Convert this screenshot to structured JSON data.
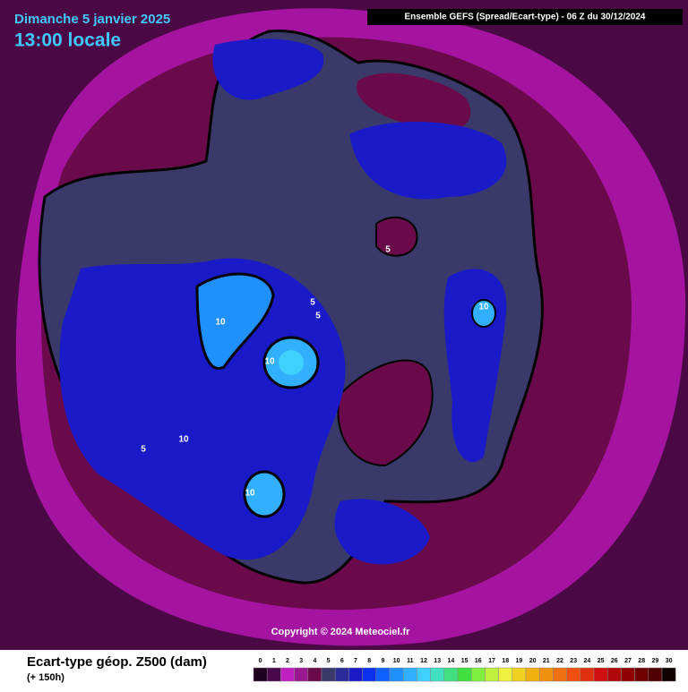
{
  "header": {
    "date": "Dimanche 5 janvier 2025",
    "time": "13:00 locale",
    "run": "Ensemble GEFS  (Spread/Ecart-type) - 06 Z du 30/12/2024"
  },
  "contour_labels": [
    "5",
    "5",
    "5",
    "5",
    "10",
    "10",
    "10",
    "10",
    "10",
    "10"
  ],
  "copyright": "Copyright © 2024 Meteociel.fr",
  "legend": {
    "title": "Ecart-type géop. Z500 (dam)",
    "subtitle": "(+ 150h)",
    "labels": [
      "0",
      "1",
      "2",
      "3",
      "4",
      "5",
      "6",
      "7",
      "8",
      "9",
      "10",
      "11",
      "12",
      "13",
      "14",
      "15",
      "16",
      "17",
      "18",
      "19",
      "20",
      "21",
      "22",
      "23",
      "24",
      "25",
      "26",
      "27",
      "28",
      "29",
      "30"
    ],
    "colors": [
      "#200020",
      "#48084a",
      "#c020c0",
      "#9a1890",
      "#6a0a4a",
      "#3a3a6a",
      "#2a2a9a",
      "#1a1ac8",
      "#0a30f0",
      "#1060ff",
      "#2090ff",
      "#30b0ff",
      "#40d0ff",
      "#40e0c0",
      "#40e080",
      "#40e040",
      "#80f040",
      "#c0f040",
      "#f0f040",
      "#f0d020",
      "#f0b010",
      "#f09010",
      "#f07010",
      "#f05010",
      "#e03010",
      "#d01010",
      "#b00808",
      "#900000",
      "#700000",
      "#500000",
      "#100000"
    ]
  }
}
